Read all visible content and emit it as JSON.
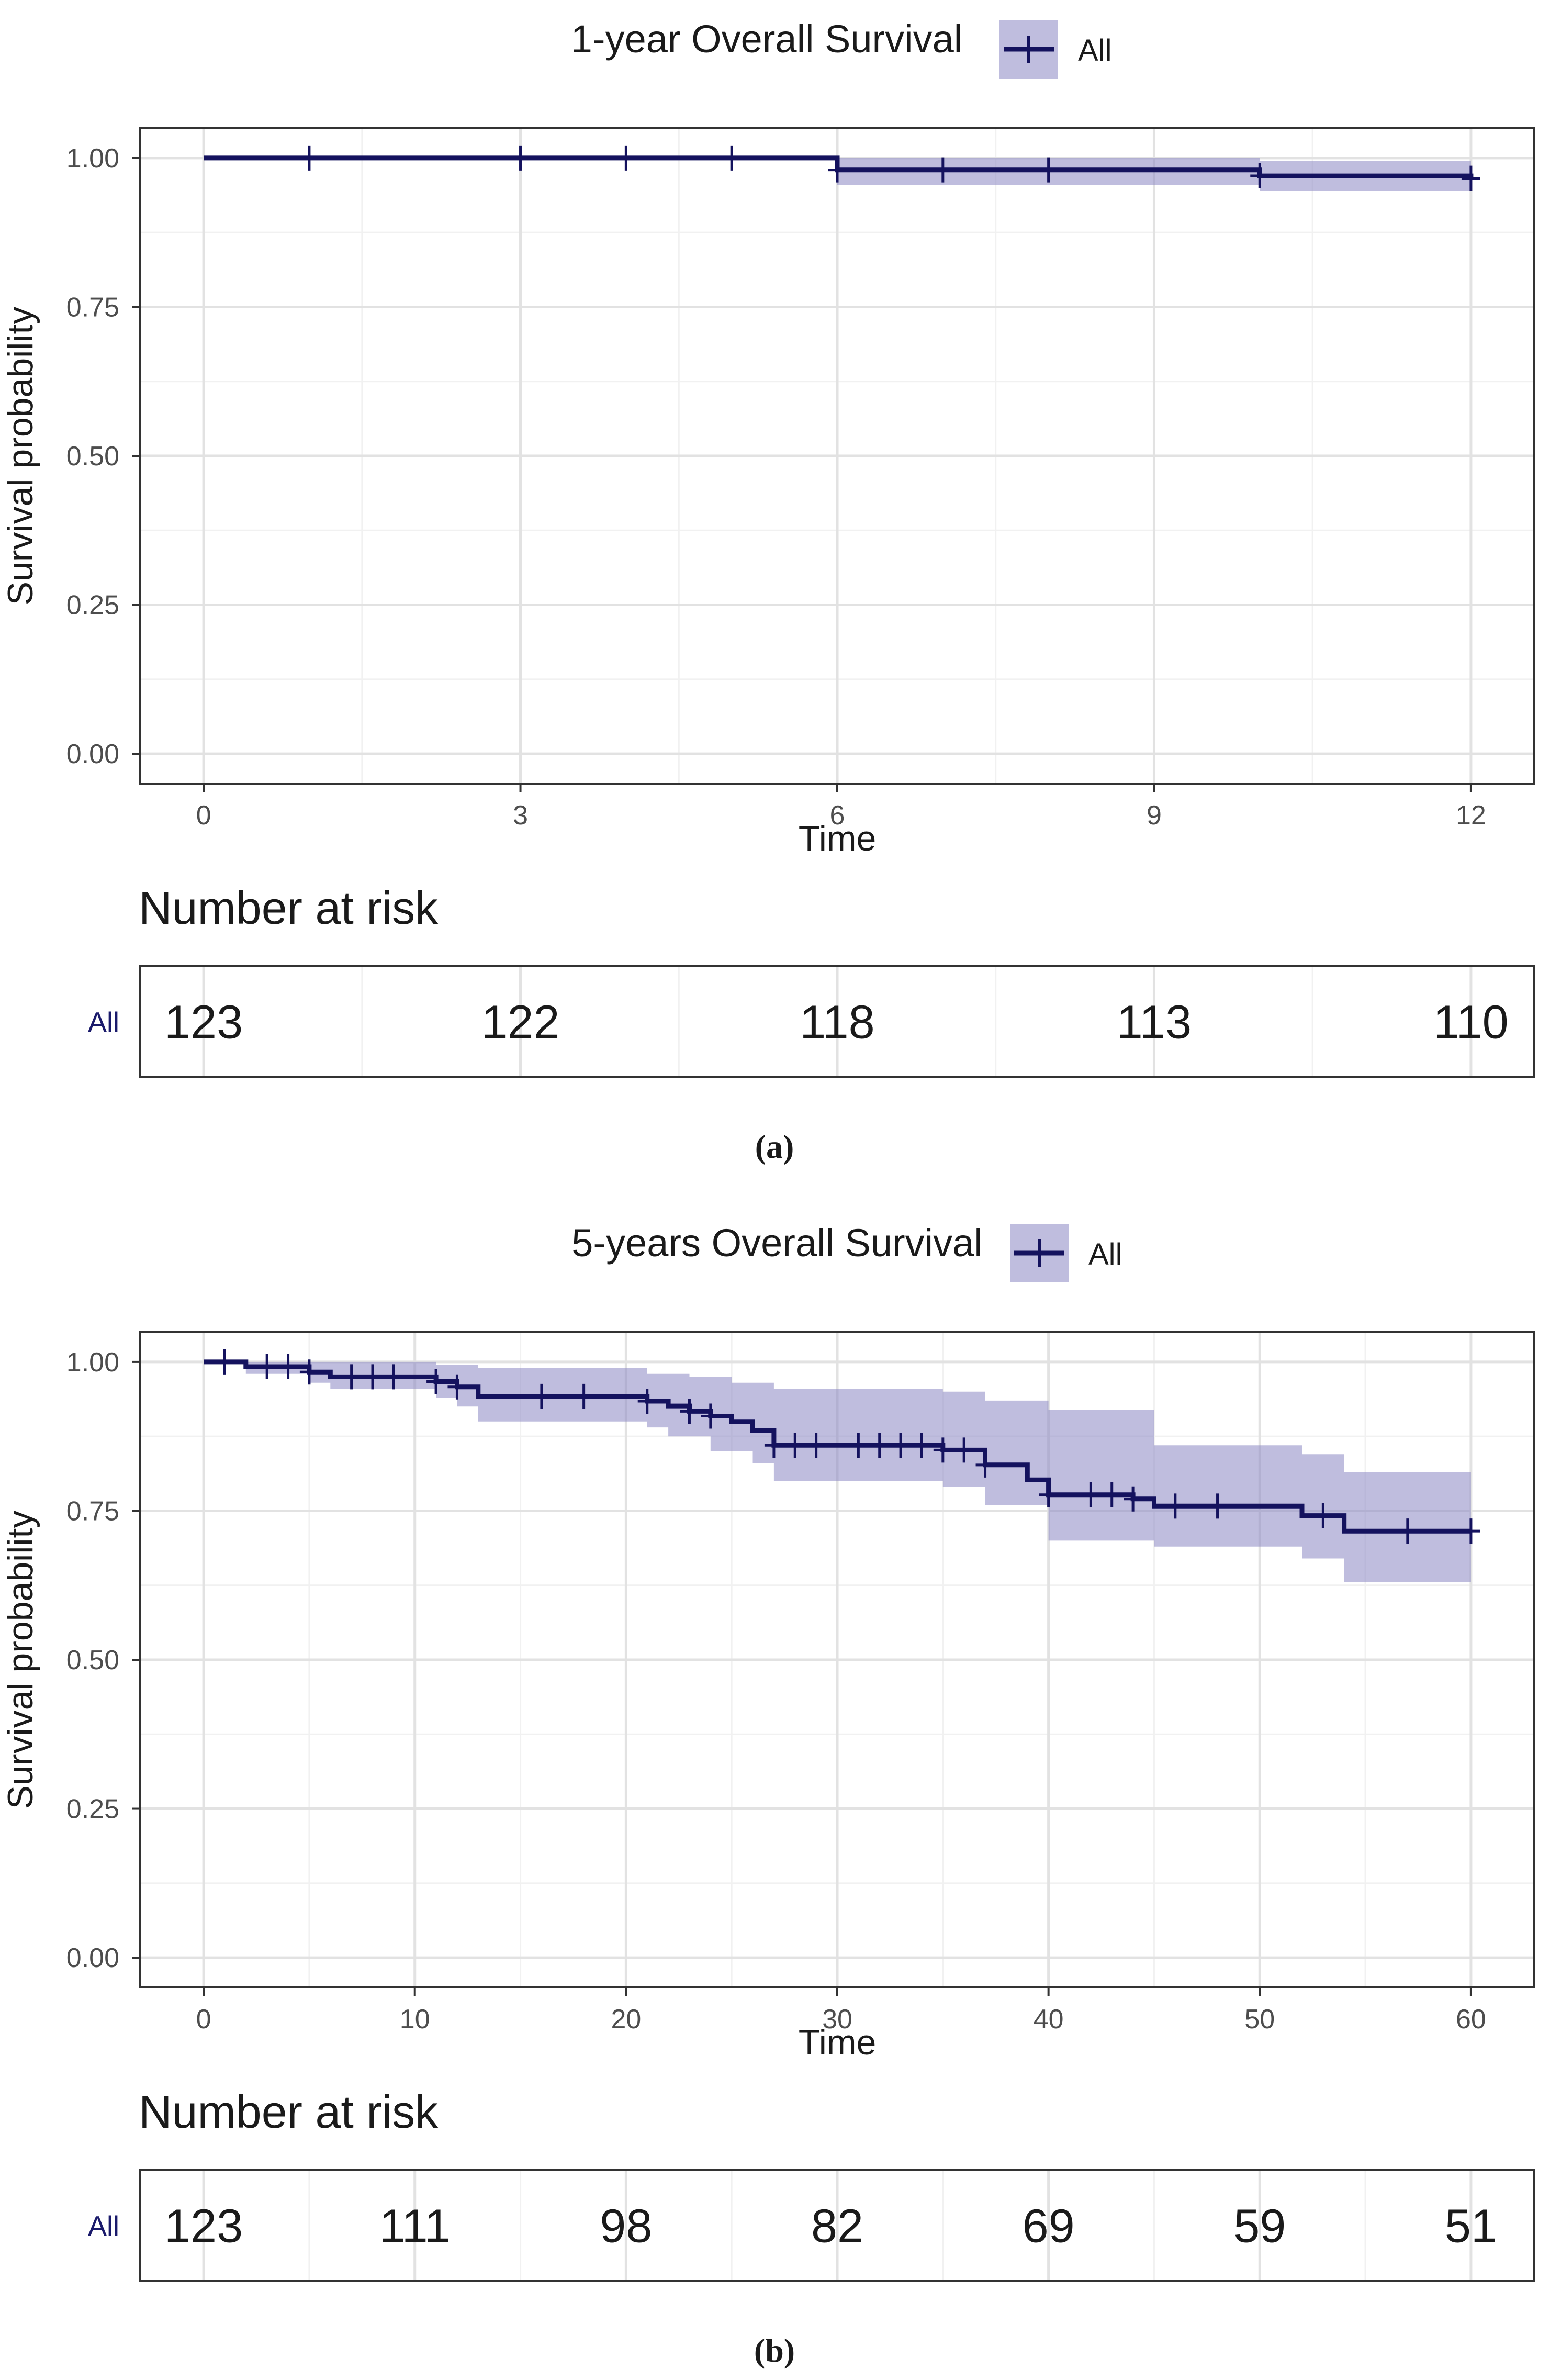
{
  "colors": {
    "line": "#14125e",
    "band": "#8b87c2",
    "grid_major": "#e2e2e2",
    "grid_minor": "#f1f1f1",
    "axis_text": "#4d4d4d",
    "label_blue": "#1a1a6b"
  },
  "chart_data": [
    {
      "type": "line",
      "subtype": "kaplan-meier",
      "panel_label": "(a)",
      "title": "1-year Overall Survival",
      "legend": {
        "label": "All",
        "position": "top"
      },
      "xlabel": "Time",
      "ylabel": "Survival probability",
      "xlim": [
        0,
        12
      ],
      "ylim": [
        0,
        1
      ],
      "xticks": [
        0,
        3,
        6,
        9,
        12
      ],
      "xtick_labels": [
        "0",
        "3",
        "6",
        "9",
        "12"
      ],
      "yticks": [
        0,
        0.25,
        0.5,
        0.75,
        1
      ],
      "ytick_labels": [
        "0.00",
        "0.25",
        "0.50",
        "0.75",
        "1.00"
      ],
      "series": [
        {
          "name": "All",
          "steps": [
            [
              0,
              1.0
            ],
            [
              6,
              0.98
            ],
            [
              10,
              0.97
            ],
            [
              12,
              0.966
            ]
          ],
          "ci_upper": [
            [
              0,
              1.0
            ],
            [
              6,
              1.0
            ],
            [
              10,
              0.995
            ],
            [
              12,
              0.995
            ]
          ],
          "ci_lower": [
            [
              0,
              1.0
            ],
            [
              6,
              0.955
            ],
            [
              10,
              0.945
            ],
            [
              12,
              0.94
            ]
          ],
          "censor": [
            1,
            3,
            4,
            5,
            6,
            7,
            8,
            10,
            12
          ]
        }
      ],
      "risk_table": {
        "title": "Number at risk",
        "strata": "All",
        "times": [
          0,
          3,
          6,
          9,
          12
        ],
        "counts": [
          "123",
          "122",
          "118",
          "113",
          "110"
        ]
      }
    },
    {
      "type": "line",
      "subtype": "kaplan-meier",
      "panel_label": "(b)",
      "title": "5-years Overall Survival",
      "legend": {
        "label": "All",
        "position": "top"
      },
      "xlabel": "Time",
      "ylabel": "Survival probability",
      "xlim": [
        0,
        60
      ],
      "ylim": [
        0,
        1
      ],
      "xticks": [
        0,
        10,
        20,
        30,
        40,
        50,
        60
      ],
      "xtick_labels": [
        "0",
        "10",
        "20",
        "30",
        "40",
        "50",
        "60"
      ],
      "yticks": [
        0,
        0.25,
        0.5,
        0.75,
        1
      ],
      "ytick_labels": [
        "0.00",
        "0.25",
        "0.50",
        "0.75",
        "1.00"
      ],
      "series": [
        {
          "name": "All",
          "steps": [
            [
              0,
              1.0
            ],
            [
              2,
              0.992
            ],
            [
              5,
              0.983
            ],
            [
              6,
              0.975
            ],
            [
              11,
              0.967
            ],
            [
              12,
              0.958
            ],
            [
              13,
              0.942
            ],
            [
              21,
              0.934
            ],
            [
              22,
              0.926
            ],
            [
              23,
              0.917
            ],
            [
              24,
              0.909
            ],
            [
              25,
              0.9
            ],
            [
              26,
              0.885
            ],
            [
              27,
              0.86
            ],
            [
              35,
              0.852
            ],
            [
              37,
              0.827
            ],
            [
              39,
              0.802
            ],
            [
              40,
              0.777
            ],
            [
              44,
              0.77
            ],
            [
              45,
              0.758
            ],
            [
              52,
              0.742
            ],
            [
              54,
              0.716
            ],
            [
              60,
              0.716
            ]
          ],
          "ci_upper": [
            [
              0,
              1.0
            ],
            [
              5,
              1.0
            ],
            [
              11,
              0.995
            ],
            [
              13,
              0.99
            ],
            [
              21,
              0.98
            ],
            [
              23,
              0.975
            ],
            [
              25,
              0.965
            ],
            [
              27,
              0.955
            ],
            [
              35,
              0.95
            ],
            [
              37,
              0.935
            ],
            [
              40,
              0.92
            ],
            [
              45,
              0.86
            ],
            [
              52,
              0.845
            ],
            [
              54,
              0.815
            ],
            [
              60,
              0.815
            ]
          ],
          "ci_lower": [
            [
              0,
              1.0
            ],
            [
              2,
              0.98
            ],
            [
              5,
              0.965
            ],
            [
              6,
              0.955
            ],
            [
              11,
              0.94
            ],
            [
              12,
              0.925
            ],
            [
              13,
              0.9
            ],
            [
              21,
              0.89
            ],
            [
              22,
              0.875
            ],
            [
              24,
              0.85
            ],
            [
              26,
              0.83
            ],
            [
              27,
              0.8
            ],
            [
              35,
              0.79
            ],
            [
              37,
              0.76
            ],
            [
              40,
              0.7
            ],
            [
              45,
              0.69
            ],
            [
              52,
              0.67
            ],
            [
              54,
              0.63
            ],
            [
              60,
              0.63
            ]
          ],
          "censor": [
            1,
            3,
            4,
            5,
            7,
            8,
            9,
            11,
            12,
            16,
            18,
            21,
            23,
            24,
            27,
            28,
            29,
            31,
            32,
            33,
            34,
            35,
            36,
            37,
            40,
            42,
            43,
            44,
            46,
            48,
            53,
            57,
            60
          ]
        }
      ],
      "risk_table": {
        "title": "Number at risk",
        "strata": "All",
        "times": [
          0,
          10,
          20,
          30,
          40,
          50,
          60
        ],
        "counts": [
          "123",
          "111",
          "98",
          "82",
          "69",
          "59",
          "51"
        ]
      }
    }
  ]
}
